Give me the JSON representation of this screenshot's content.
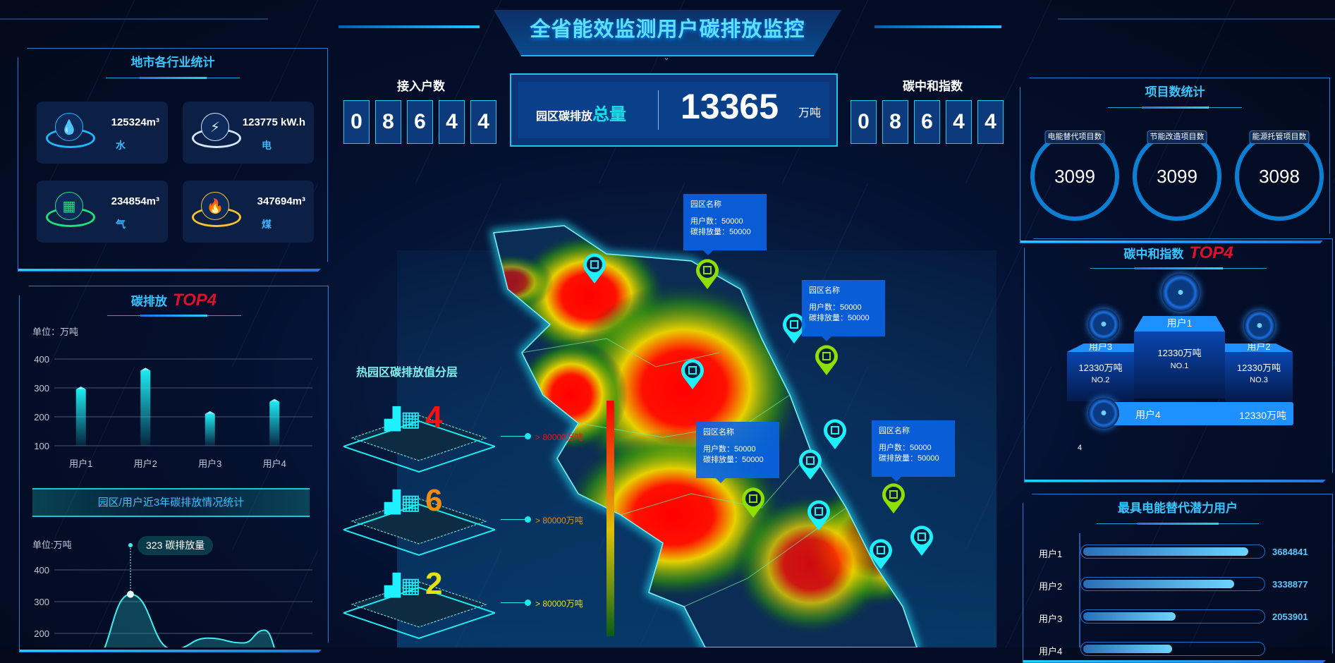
{
  "header": {
    "title": "全省能效监测用户碳排放监控"
  },
  "colors": {
    "accent": "#35c6ff",
    "top4": "#e0102a",
    "panel_border": "#1b7fcf",
    "bar": "#1de9f0",
    "tier1": "#ff1010",
    "tier2": "#f08c10",
    "tier3": "#e6e010"
  },
  "industry": {
    "title": "地市各行业统计",
    "items": [
      {
        "value": "125324m³",
        "label": "水",
        "icon": "water-drop-icon",
        "color": "#1fb8ff"
      },
      {
        "value": "123775 kW.h",
        "label": "电",
        "icon": "lightning-icon",
        "color": "#cfe8ff"
      },
      {
        "value": "234854m³",
        "label": "气",
        "icon": "gas-icon",
        "color": "#22e07a"
      },
      {
        "value": "347694m³",
        "label": "煤",
        "icon": "flame-icon",
        "color": "#f5c232"
      }
    ]
  },
  "emission_top4": {
    "title": "碳排放",
    "top_label": "TOP4",
    "unit": "单位：万吨"
  },
  "history_banner": "园区/用户近3年碳排放情况统计",
  "chart_data": [
    {
      "type": "bar",
      "categories": [
        "用户1",
        "用户2",
        "用户3",
        "用户4"
      ],
      "values": [
        295,
        360,
        210,
        252
      ],
      "ylim": [
        100,
        400
      ],
      "yticks": [
        100,
        200,
        300,
        400
      ],
      "grid": true
    },
    {
      "type": "area",
      "unit": "单位:万吨",
      "values": [
        110,
        323,
        150,
        185,
        170,
        210,
        120
      ],
      "ylim": [
        100,
        400
      ],
      "yticks": [
        200,
        300,
        400
      ],
      "grid": true,
      "tooltip": {
        "value": "323",
        "label": "碳排放量"
      }
    }
  ],
  "access": {
    "label": "接入户数",
    "digits": [
      "0",
      "8",
      "6",
      "4",
      "4"
    ]
  },
  "total": {
    "label_prefix": "园区碳排放",
    "label_emph": "总量",
    "value": "13365",
    "unit": "万吨"
  },
  "neutral": {
    "label": "碳中和指数",
    "digits": [
      "0",
      "8",
      "6",
      "4",
      "4"
    ]
  },
  "layers": {
    "title": "热园区碳排放值分层",
    "tiers": [
      {
        "count": "4",
        "label": "> 80000万吨"
      },
      {
        "count": "6",
        "label": "> 80000万吨"
      },
      {
        "count": "2",
        "label": "> 80000万吨"
      }
    ]
  },
  "map": {
    "tooltips": [
      {
        "name": "园区名称",
        "users": "用户数：50000",
        "emission": "碳排放量：50000"
      },
      {
        "name": "园区名称",
        "users": "用户数：50000",
        "emission": "碳排放量：50000"
      },
      {
        "name": "园区名称",
        "users": "用户数：50000",
        "emission": "碳排放量：50000"
      },
      {
        "name": "园区名称",
        "users": "用户数：50000",
        "emission": "碳排放量：50000"
      }
    ]
  },
  "projects": {
    "title": "项目数统计",
    "items": [
      {
        "label": "电能替代项目数",
        "value": "3099"
      },
      {
        "label": "节能改造项目数",
        "value": "3099"
      },
      {
        "label": "能源托管项目数",
        "value": "3098"
      }
    ]
  },
  "neutral_top4": {
    "title": "碳中和指数",
    "top_label": "TOP4",
    "first": {
      "name": "用户1",
      "value": "12330万吨",
      "rank": "NO.1"
    },
    "second": {
      "name": "用户3",
      "value": "12330万吨",
      "rank": "NO.2"
    },
    "third": {
      "name": "用户2",
      "value": "12330万吨",
      "rank": "NO.3"
    },
    "fourth": {
      "rank": "4",
      "name": "用户4",
      "value": "12330万吨"
    }
  },
  "potential": {
    "title": "最具电能替代潜力用户",
    "rows": [
      {
        "label": "用户1",
        "value": "3684841",
        "fraction": 0.93
      },
      {
        "label": "用户2",
        "value": "3338877",
        "fraction": 0.85
      },
      {
        "label": "用户3",
        "value": "2053901",
        "fraction": 0.52
      },
      {
        "label": "用户4",
        "fraction": 0.5
      }
    ]
  }
}
